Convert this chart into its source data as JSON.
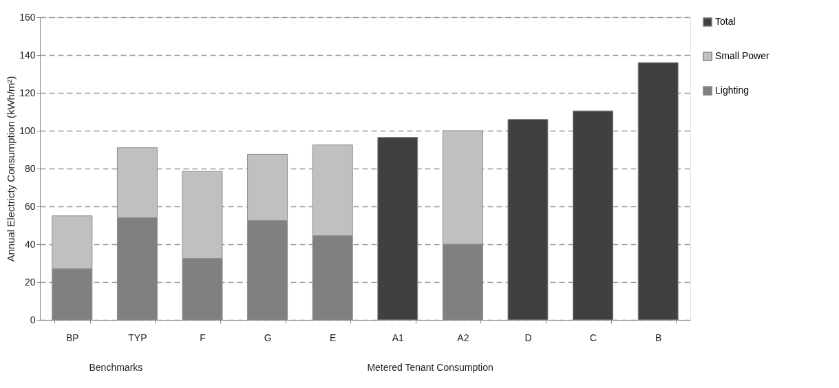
{
  "chart_data": {
    "type": "bar",
    "stacked": true,
    "ylabel": "Annual Electricty Consumption (kWh/m²)",
    "categories": [
      "BP",
      "TYP",
      "F",
      "G",
      "E",
      "A1",
      "A2",
      "D",
      "C",
      "B"
    ],
    "series": [
      {
        "name": "Lighting",
        "color": "#808080",
        "values": [
          27,
          54,
          32.5,
          52.5,
          44.5,
          null,
          40,
          null,
          null,
          null
        ]
      },
      {
        "name": "Small Power",
        "color": "#c0c0c0",
        "values": [
          28,
          37,
          46,
          35,
          48,
          null,
          60,
          null,
          null,
          null
        ]
      },
      {
        "name": "Total",
        "color": "#404040",
        "values": [
          null,
          null,
          null,
          null,
          null,
          96.5,
          null,
          106,
          110.5,
          136
        ]
      }
    ],
    "ylim": [
      0,
      160
    ],
    "yticks": [
      0,
      20,
      40,
      60,
      80,
      100,
      120,
      140,
      160
    ],
    "grid": "y",
    "legend": "right",
    "annotations": [
      "Benchmarks",
      "Metered Tenant Consumption"
    ]
  }
}
